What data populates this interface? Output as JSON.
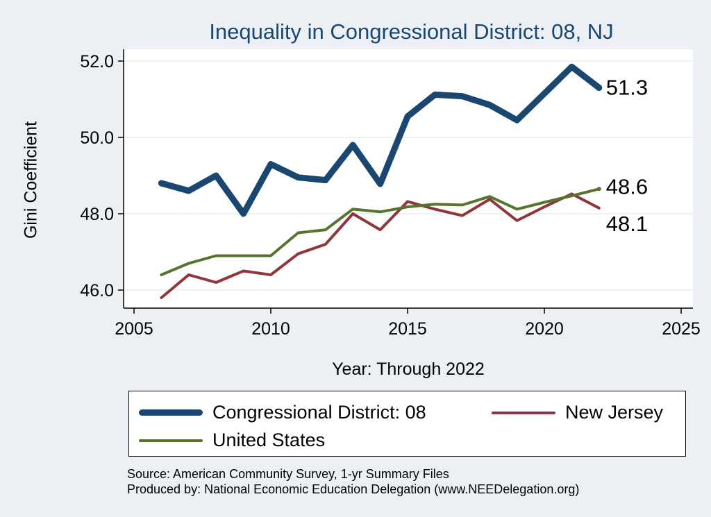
{
  "chart_data": {
    "type": "line",
    "title": "Inequality in Congressional District:  08, NJ",
    "xlabel": "Year: Through 2022",
    "ylabel": "Gini Coefficient",
    "xlim": [
      2005,
      2025
    ],
    "ylim": [
      45.5,
      52.5
    ],
    "xticks": [
      2005,
      2010,
      2015,
      2020,
      2025
    ],
    "yticks": [
      46.0,
      48.0,
      50.0,
      52.0
    ],
    "ytick_labels": [
      "46.0",
      "48.0",
      "50.0",
      "52.0"
    ],
    "grid": true,
    "x": [
      2006,
      2007,
      2008,
      2009,
      2010,
      2011,
      2012,
      2013,
      2014,
      2015,
      2016,
      2017,
      2018,
      2019,
      2020,
      2021,
      2022
    ],
    "series": [
      {
        "name": "Congressional District:  08",
        "color": "#1a476f",
        "width": 9,
        "values": [
          48.8,
          48.6,
          49.0,
          48.0,
          49.3,
          48.95,
          48.88,
          49.8,
          48.78,
          50.55,
          51.12,
          51.08,
          50.85,
          50.45,
          51.15,
          51.85,
          51.3
        ],
        "end_label": "51.3"
      },
      {
        "name": "New Jersey",
        "color": "#90353b",
        "width": 4,
        "values": [
          45.8,
          46.4,
          46.2,
          46.5,
          46.4,
          46.95,
          47.2,
          48.0,
          47.58,
          48.32,
          48.12,
          47.95,
          48.38,
          47.82,
          48.18,
          48.52,
          48.15
        ],
        "end_label": "48.1"
      },
      {
        "name": "United States",
        "color": "#55752f",
        "width": 4,
        "values": [
          46.4,
          46.7,
          46.9,
          46.9,
          46.9,
          47.5,
          47.58,
          48.12,
          48.05,
          48.18,
          48.25,
          48.23,
          48.45,
          48.12,
          48.3,
          48.47,
          48.65
        ],
        "end_label": "48.6"
      }
    ],
    "legend_position": "bottom"
  },
  "legend": {
    "items": [
      {
        "label": "Congressional District:  08"
      },
      {
        "label": "New Jersey"
      },
      {
        "label": "United States"
      }
    ]
  },
  "source": {
    "line1": "Source: American Community Survey, 1-yr Summary Files",
    "line2": "Produced by: National Economic Education Delegation (www.NEEDelegation.org)"
  }
}
